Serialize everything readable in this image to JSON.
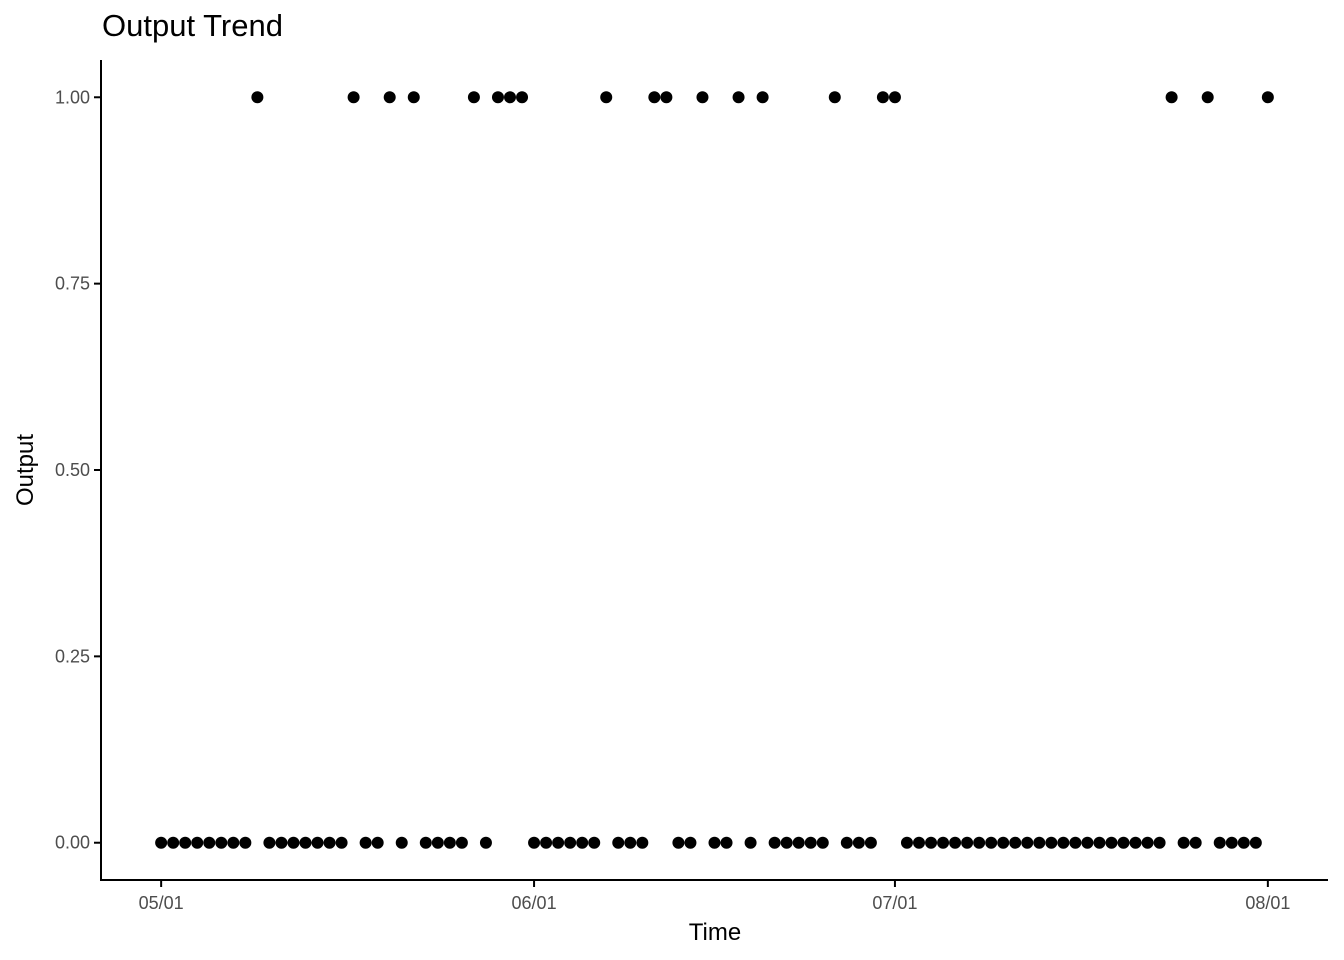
{
  "chart_data": {
    "type": "scatter",
    "title": "Output Trend",
    "xlabel": "Time",
    "ylabel": "Output",
    "x_range": [
      "2024-04-26",
      "2024-08-06"
    ],
    "ylim": [
      -0.05,
      1.05
    ],
    "grid": false,
    "x_ticks": [
      {
        "value": "2024-05-01",
        "label": "05/01"
      },
      {
        "value": "2024-06-01",
        "label": "06/01"
      },
      {
        "value": "2024-07-01",
        "label": "07/01"
      },
      {
        "value": "2024-08-01",
        "label": "08/01"
      }
    ],
    "y_ticks": [
      {
        "value": 0,
        "label": "0.00"
      },
      {
        "value": 0.25,
        "label": "0.25"
      },
      {
        "value": 0.5,
        "label": "0.50"
      },
      {
        "value": 0.75,
        "label": "0.75"
      },
      {
        "value": 1,
        "label": "1.00"
      }
    ],
    "series": [
      {
        "values": [
          {
            "x": "2024-05-01",
            "y": 0
          },
          {
            "x": "2024-05-02",
            "y": 0
          },
          {
            "x": "2024-05-03",
            "y": 0
          },
          {
            "x": "2024-05-04",
            "y": 0
          },
          {
            "x": "2024-05-05",
            "y": 0
          },
          {
            "x": "2024-05-06",
            "y": 0
          },
          {
            "x": "2024-05-07",
            "y": 0
          },
          {
            "x": "2024-05-08",
            "y": 0
          },
          {
            "x": "2024-05-09",
            "y": 1
          },
          {
            "x": "2024-05-10",
            "y": 0
          },
          {
            "x": "2024-05-11",
            "y": 0
          },
          {
            "x": "2024-05-12",
            "y": 0
          },
          {
            "x": "2024-05-13",
            "y": 0
          },
          {
            "x": "2024-05-14",
            "y": 0
          },
          {
            "x": "2024-05-15",
            "y": 0
          },
          {
            "x": "2024-05-16",
            "y": 0
          },
          {
            "x": "2024-05-17",
            "y": 1
          },
          {
            "x": "2024-05-18",
            "y": 0
          },
          {
            "x": "2024-05-19",
            "y": 0
          },
          {
            "x": "2024-05-20",
            "y": 1
          },
          {
            "x": "2024-05-21",
            "y": 0
          },
          {
            "x": "2024-05-22",
            "y": 1
          },
          {
            "x": "2024-05-23",
            "y": 0
          },
          {
            "x": "2024-05-24",
            "y": 0
          },
          {
            "x": "2024-05-25",
            "y": 0
          },
          {
            "x": "2024-05-26",
            "y": 0
          },
          {
            "x": "2024-05-27",
            "y": 1
          },
          {
            "x": "2024-05-28",
            "y": 0
          },
          {
            "x": "2024-05-29",
            "y": 1
          },
          {
            "x": "2024-05-30",
            "y": 1
          },
          {
            "x": "2024-05-31",
            "y": 1
          },
          {
            "x": "2024-06-01",
            "y": 0
          },
          {
            "x": "2024-06-02",
            "y": 0
          },
          {
            "x": "2024-06-03",
            "y": 0
          },
          {
            "x": "2024-06-04",
            "y": 0
          },
          {
            "x": "2024-06-05",
            "y": 0
          },
          {
            "x": "2024-06-06",
            "y": 0
          },
          {
            "x": "2024-06-07",
            "y": 1
          },
          {
            "x": "2024-06-08",
            "y": 0
          },
          {
            "x": "2024-06-09",
            "y": 0
          },
          {
            "x": "2024-06-10",
            "y": 0
          },
          {
            "x": "2024-06-11",
            "y": 1
          },
          {
            "x": "2024-06-12",
            "y": 1
          },
          {
            "x": "2024-06-13",
            "y": 0
          },
          {
            "x": "2024-06-14",
            "y": 0
          },
          {
            "x": "2024-06-15",
            "y": 1
          },
          {
            "x": "2024-06-16",
            "y": 0
          },
          {
            "x": "2024-06-17",
            "y": 0
          },
          {
            "x": "2024-06-18",
            "y": 1
          },
          {
            "x": "2024-06-19",
            "y": 0
          },
          {
            "x": "2024-06-20",
            "y": 1
          },
          {
            "x": "2024-06-21",
            "y": 0
          },
          {
            "x": "2024-06-22",
            "y": 0
          },
          {
            "x": "2024-06-23",
            "y": 0
          },
          {
            "x": "2024-06-24",
            "y": 0
          },
          {
            "x": "2024-06-25",
            "y": 0
          },
          {
            "x": "2024-06-26",
            "y": 1
          },
          {
            "x": "2024-06-27",
            "y": 0
          },
          {
            "x": "2024-06-28",
            "y": 0
          },
          {
            "x": "2024-06-29",
            "y": 0
          },
          {
            "x": "2024-06-30",
            "y": 1
          },
          {
            "x": "2024-07-01",
            "y": 1
          },
          {
            "x": "2024-07-02",
            "y": 0
          },
          {
            "x": "2024-07-03",
            "y": 0
          },
          {
            "x": "2024-07-04",
            "y": 0
          },
          {
            "x": "2024-07-05",
            "y": 0
          },
          {
            "x": "2024-07-06",
            "y": 0
          },
          {
            "x": "2024-07-07",
            "y": 0
          },
          {
            "x": "2024-07-08",
            "y": 0
          },
          {
            "x": "2024-07-09",
            "y": 0
          },
          {
            "x": "2024-07-10",
            "y": 0
          },
          {
            "x": "2024-07-11",
            "y": 0
          },
          {
            "x": "2024-07-12",
            "y": 0
          },
          {
            "x": "2024-07-13",
            "y": 0
          },
          {
            "x": "2024-07-14",
            "y": 0
          },
          {
            "x": "2024-07-15",
            "y": 0
          },
          {
            "x": "2024-07-16",
            "y": 0
          },
          {
            "x": "2024-07-17",
            "y": 0
          },
          {
            "x": "2024-07-18",
            "y": 0
          },
          {
            "x": "2024-07-19",
            "y": 0
          },
          {
            "x": "2024-07-20",
            "y": 0
          },
          {
            "x": "2024-07-21",
            "y": 0
          },
          {
            "x": "2024-07-22",
            "y": 0
          },
          {
            "x": "2024-07-23",
            "y": 0
          },
          {
            "x": "2024-07-24",
            "y": 1
          },
          {
            "x": "2024-07-25",
            "y": 0
          },
          {
            "x": "2024-07-26",
            "y": 0
          },
          {
            "x": "2024-07-27",
            "y": 1
          },
          {
            "x": "2024-07-28",
            "y": 0
          },
          {
            "x": "2024-07-29",
            "y": 0
          },
          {
            "x": "2024-07-30",
            "y": 0
          },
          {
            "x": "2024-07-31",
            "y": 0
          },
          {
            "x": "2024-08-01",
            "y": 1
          }
        ]
      }
    ],
    "colors": {
      "point": "#000000",
      "axis": "#000000",
      "tick_label": "#4d4d4d"
    }
  }
}
